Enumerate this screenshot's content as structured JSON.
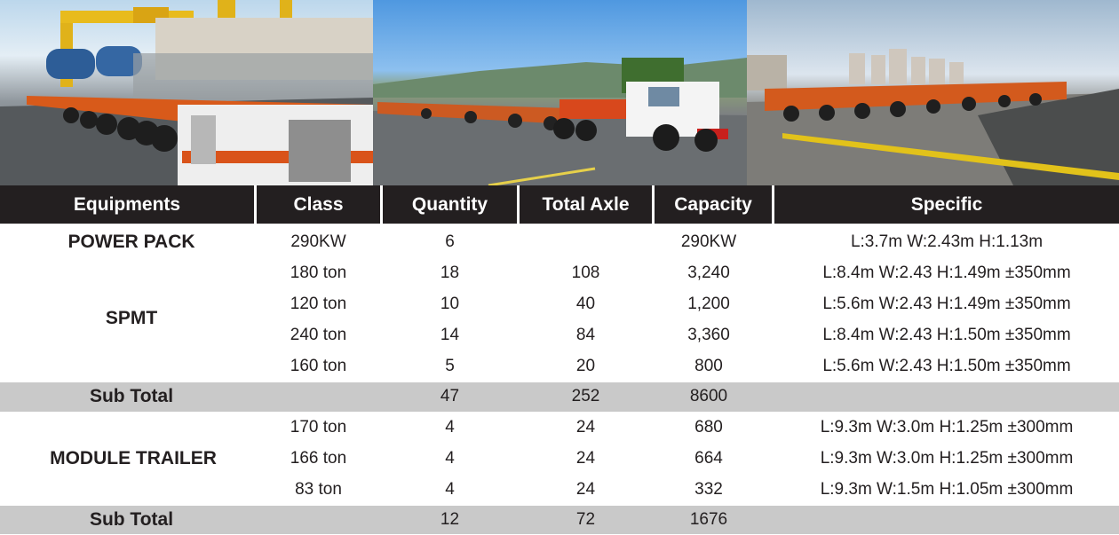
{
  "columns": {
    "equipments": "Equipments",
    "class": "Class",
    "quantity": "Quantity",
    "total_axle": "Total Axle",
    "capacity": "Capacity",
    "specific": "Specific"
  },
  "groups": {
    "power_pack": {
      "name": "POWER PACK",
      "rows": [
        {
          "class": "290KW",
          "quantity": "6",
          "total_axle": "",
          "capacity": "290KW",
          "specific": "L:3.7m W:2.43m H:1.13m"
        }
      ]
    },
    "spmt": {
      "name": "SPMT",
      "rows": [
        {
          "class": "180 ton",
          "quantity": "18",
          "total_axle": "108",
          "capacity": "3,240",
          "specific": "L:8.4m  W:2.43  H:1.49m  ±350mm"
        },
        {
          "class": "120 ton",
          "quantity": "10",
          "total_axle": "40",
          "capacity": "1,200",
          "specific": "L:5.6m  W:2.43  H:1.49m  ±350mm"
        },
        {
          "class": "240 ton",
          "quantity": "14",
          "total_axle": "84",
          "capacity": "3,360",
          "specific": "L:8.4m  W:2.43  H:1.50m  ±350mm"
        },
        {
          "class": "160 ton",
          "quantity": "5",
          "total_axle": "20",
          "capacity": "800",
          "specific": "L:5.6m  W:2.43  H:1.50m  ±350mm"
        }
      ]
    },
    "module_trailer": {
      "name": "MODULE TRAILER",
      "rows": [
        {
          "class": "170 ton",
          "quantity": "4",
          "total_axle": "24",
          "capacity": "680",
          "specific": "L:9.3m  W:3.0m  H:1.25m  ±300mm"
        },
        {
          "class": "166 ton",
          "quantity": "4",
          "total_axle": "24",
          "capacity": "664",
          "specific": "L:9.3m  W:3.0m  H:1.25m  ±300mm"
        },
        {
          "class": "83 ton",
          "quantity": "4",
          "total_axle": "24",
          "capacity": "332",
          "specific": "L:9.3m  W:1.5m  H:1.05m  ±300mm"
        }
      ]
    }
  },
  "subtotals": [
    {
      "label": "Sub Total",
      "quantity": "47",
      "total_axle": "252",
      "capacity": "8600"
    },
    {
      "label": "Sub Total",
      "quantity": "12",
      "total_axle": "72",
      "capacity": "1676"
    }
  ],
  "colors": {
    "header_bg": "#231f20",
    "header_text": "#ffffff",
    "subtotal_bg": "#c9c9c9",
    "body_text": "#231f20"
  }
}
